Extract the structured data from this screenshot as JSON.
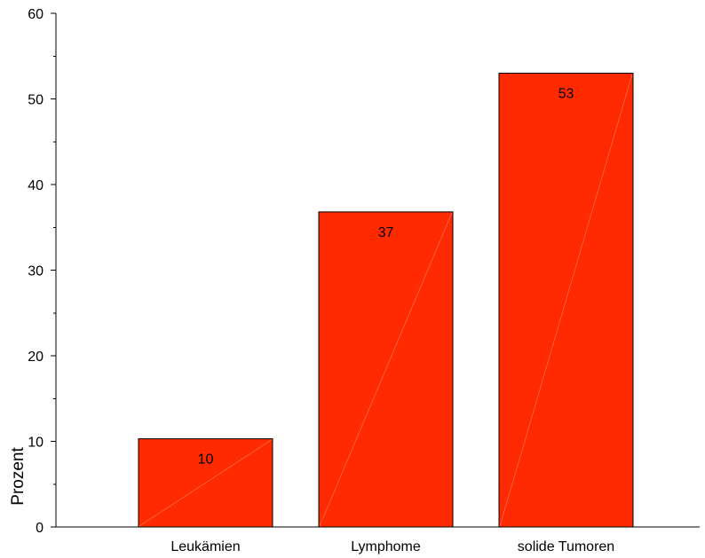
{
  "chart_data": {
    "type": "bar",
    "categories": [
      "Leukämien",
      "Lymphome",
      "solide Tumoren"
    ],
    "values": [
      10.3,
      36.8,
      53
    ],
    "data_labels": [
      "10",
      "37",
      "53"
    ],
    "title": "",
    "xlabel": "",
    "ylabel": "Prozent",
    "ylim": [
      0,
      60
    ],
    "yticks": [
      0,
      10,
      20,
      30,
      40,
      50,
      60
    ],
    "y_tick_labels": [
      "0",
      "10",
      "20",
      "30",
      "40",
      "50",
      "60"
    ],
    "bar_color": "#ff2a00",
    "grid": false,
    "legend": "none"
  }
}
